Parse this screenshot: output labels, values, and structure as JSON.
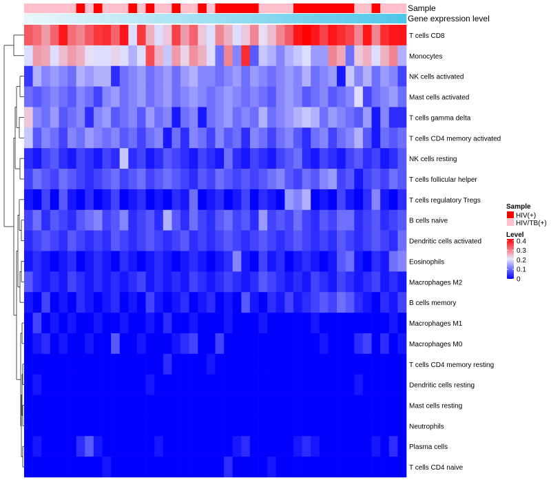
{
  "chart_data": {
    "type": "heatmap",
    "annotation_tracks": [
      {
        "name": "Sample"
      },
      {
        "name": "Gene expression level"
      }
    ],
    "rows": [
      "T cells CD8",
      "Monocytes",
      "NK cells activated",
      "Mast cells activated",
      "T cells gamma delta",
      "T cells CD4 memory activated",
      "NK cells resting",
      "T cells follicular helper",
      "T cells regulatory  Tregs",
      "B cells naive",
      "Dendritic cells activated",
      "Eosinophils",
      "Macrophages M2",
      "B cells memory",
      "Macrophages M1",
      "Macrophages M0",
      "T cells CD4 memory resting",
      "Dendritic cells resting",
      "Mast cells resting",
      "Neutrophils",
      "Plasma cells",
      "T cells CD4 naive"
    ],
    "sample_groups": [
      "HIV/TB(+)",
      "HIV/TB(+)",
      "HIV/TB(+)",
      "HIV/TB(+)",
      "HIV/TB(+)",
      "HIV/TB(+)",
      "HIV(+)",
      "HIV/TB(+)",
      "HIV(+)",
      "HIV/TB(+)",
      "HIV/TB(+)",
      "HIV/TB(+)",
      "HIV(+)",
      "HIV/TB(+)",
      "HIV(+)",
      "HIV/TB(+)",
      "HIV/TB(+)",
      "HIV(+)",
      "HIV/TB(+)",
      "HIV/TB(+)",
      "HIV(+)",
      "HIV/TB(+)",
      "HIV(+)",
      "HIV(+)",
      "HIV(+)",
      "HIV(+)",
      "HIV(+)",
      "HIV/TB(+)",
      "HIV/TB(+)",
      "HIV/TB(+)",
      "HIV/TB(+)",
      "HIV(+)",
      "HIV(+)",
      "HIV(+)",
      "HIV(+)",
      "HIV(+)",
      "HIV(+)",
      "HIV(+)",
      "HIV/TB(+)",
      "HIV/TB(+)",
      "HIV(+)",
      "HIV/TB(+)",
      "HIV/TB(+)",
      "HIV/TB(+)"
    ],
    "values": [
      [
        0.34,
        0.32,
        0.28,
        0.33,
        0.4,
        0.32,
        0.3,
        0.34,
        0.37,
        0.38,
        0.33,
        0.4,
        0.2,
        0.37,
        0.26,
        0.2,
        0.24,
        0.36,
        0.28,
        0.33,
        0.24,
        0.2,
        0.3,
        0.26,
        0.2,
        0.24,
        0.3,
        0.22,
        0.25,
        0.3,
        0.34,
        0.4,
        0.42,
        0.4,
        0.36,
        0.4,
        0.38,
        0.36,
        0.3,
        0.4,
        0.3,
        0.38,
        0.4,
        0.4
      ],
      [
        0.2,
        0.28,
        0.27,
        0.2,
        0.25,
        0.28,
        0.26,
        0.22,
        0.2,
        0.2,
        0.23,
        0.2,
        0.16,
        0.2,
        0.35,
        0.26,
        0.18,
        0.28,
        0.23,
        0.29,
        0.26,
        0.2,
        0.1,
        0.3,
        0.12,
        0.38,
        0.08,
        0.18,
        0.16,
        0.12,
        0.16,
        0.18,
        0.2,
        0.14,
        0.14,
        0.3,
        0.27,
        0.1,
        0.24,
        0.26,
        0.2,
        0.26,
        0.3,
        0.16
      ],
      [
        0.05,
        0.16,
        0.12,
        0.14,
        0.12,
        0.1,
        0.16,
        0.14,
        0.16,
        0.16,
        0.04,
        0.1,
        0.12,
        0.14,
        0.1,
        0.12,
        0.14,
        0.1,
        0.14,
        0.16,
        0.12,
        0.12,
        0.1,
        0.12,
        0.14,
        0.1,
        0.14,
        0.12,
        0.1,
        0.12,
        0.14,
        0.12,
        0.16,
        0.1,
        0.12,
        0.14,
        0.02,
        0.18,
        0.12,
        0.16,
        0.1,
        0.14,
        0.12,
        0.06
      ],
      [
        0.1,
        0.08,
        0.1,
        0.12,
        0.1,
        0.08,
        0.12,
        0.1,
        0.06,
        0.12,
        0.14,
        0.1,
        0.12,
        0.14,
        0.1,
        0.12,
        0.14,
        0.1,
        0.12,
        0.14,
        0.12,
        0.1,
        0.12,
        0.14,
        0.12,
        0.1,
        0.12,
        0.1,
        0.08,
        0.12,
        0.14,
        0.12,
        0.08,
        0.1,
        0.12,
        0.08,
        0.1,
        0.12,
        0.2,
        0.06,
        0.1,
        0.12,
        0.14,
        0.1
      ],
      [
        0.24,
        0.12,
        0.1,
        0.14,
        0.08,
        0.1,
        0.12,
        0.04,
        0.12,
        0.14,
        0.08,
        0.1,
        0.12,
        0.08,
        0.14,
        0.1,
        0.12,
        0.02,
        0.1,
        0.12,
        0.02,
        0.1,
        0.12,
        0.14,
        0.1,
        0.12,
        0.1,
        0.16,
        0.1,
        0.12,
        0.14,
        0.16,
        0.18,
        0.16,
        0.1,
        0.14,
        0.12,
        0.1,
        0.08,
        0.14,
        0.02,
        0.12,
        0.04,
        0.04
      ],
      [
        0.18,
        0.08,
        0.12,
        0.1,
        0.06,
        0.12,
        0.1,
        0.14,
        0.12,
        0.1,
        0.12,
        0.08,
        0.1,
        0.06,
        0.1,
        0.12,
        0.02,
        0.1,
        0.04,
        0.12,
        0.1,
        0.06,
        0.12,
        0.08,
        0.1,
        0.04,
        0.12,
        0.1,
        0.06,
        0.1,
        0.12,
        0.08,
        0.04,
        0.1,
        0.12,
        0.06,
        0.1,
        0.12,
        0.16,
        0.08,
        0.02,
        0.1,
        0.08,
        0.1
      ],
      [
        0.04,
        0.02,
        0.06,
        0.08,
        0.04,
        0.02,
        0.06,
        0.04,
        0.02,
        0.06,
        0.04,
        0.18,
        0.04,
        0.06,
        0.02,
        0.04,
        0.08,
        0.06,
        0.04,
        0.02,
        0.06,
        0.04,
        0.02,
        0.1,
        0.04,
        0.02,
        0.06,
        0.04,
        0.02,
        0.06,
        0.08,
        0.1,
        0.04,
        0.02,
        0.06,
        0.04,
        0.02,
        0.06,
        0.08,
        0.04,
        0.06,
        0.02,
        0.04,
        0.08
      ],
      [
        0.06,
        0.1,
        0.08,
        0.06,
        0.1,
        0.08,
        0.06,
        0.04,
        0.06,
        0.08,
        0.1,
        0.06,
        0.08,
        0.1,
        0.06,
        0.08,
        0.1,
        0.08,
        0.06,
        0.04,
        0.08,
        0.06,
        0.1,
        0.08,
        0.06,
        0.08,
        0.06,
        0.08,
        0.1,
        0.12,
        0.08,
        0.06,
        0.1,
        0.08,
        0.12,
        0.14,
        0.06,
        0.08,
        0.02,
        0.06,
        0.08,
        0.06,
        0.1,
        0.08
      ],
      [
        0.02,
        0.0,
        0.06,
        0.0,
        0.08,
        0.02,
        0.0,
        0.04,
        0.0,
        0.02,
        0.06,
        0.0,
        0.02,
        0.04,
        0.0,
        0.02,
        0.0,
        0.04,
        0.02,
        0.1,
        0.0,
        0.02,
        0.04,
        0.0,
        0.02,
        0.06,
        0.0,
        0.04,
        0.02,
        0.0,
        0.14,
        0.12,
        0.16,
        0.0,
        0.02,
        0.0,
        0.06,
        0.02,
        0.0,
        0.04,
        0.12,
        0.02,
        0.0,
        0.04
      ],
      [
        0.06,
        0.1,
        0.04,
        0.08,
        0.06,
        0.04,
        0.08,
        0.1,
        0.12,
        0.06,
        0.08,
        0.12,
        0.04,
        0.06,
        0.08,
        0.04,
        0.16,
        0.08,
        0.04,
        0.1,
        0.06,
        0.04,
        0.08,
        0.1,
        0.06,
        0.08,
        0.04,
        0.14,
        0.06,
        0.08,
        0.06,
        0.1,
        0.06,
        0.04,
        0.08,
        0.06,
        0.1,
        0.1,
        0.04,
        0.06,
        0.08,
        0.04,
        0.06,
        0.08
      ],
      [
        0.04,
        0.06,
        0.08,
        0.06,
        0.04,
        0.08,
        0.06,
        0.04,
        0.06,
        0.04,
        0.08,
        0.06,
        0.04,
        0.06,
        0.08,
        0.06,
        0.04,
        0.06,
        0.08,
        0.04,
        0.06,
        0.04,
        0.06,
        0.08,
        0.06,
        0.04,
        0.06,
        0.08,
        0.06,
        0.04,
        0.06,
        0.08,
        0.06,
        0.04,
        0.06,
        0.04,
        0.08,
        0.06,
        0.04,
        0.06,
        0.08,
        0.06,
        0.04,
        0.1
      ],
      [
        0.02,
        0.04,
        0.02,
        0.0,
        0.02,
        0.04,
        0.0,
        0.02,
        0.04,
        0.02,
        0.0,
        0.04,
        0.02,
        0.0,
        0.02,
        0.04,
        0.02,
        0.0,
        0.02,
        0.04,
        0.02,
        0.0,
        0.02,
        0.04,
        0.12,
        0.02,
        0.0,
        0.06,
        0.02,
        0.04,
        0.0,
        0.02,
        0.04,
        0.02,
        0.0,
        0.02,
        0.08,
        0.1,
        0.02,
        0.0,
        0.04,
        0.02,
        0.1,
        0.12
      ],
      [
        0.08,
        0.04,
        0.02,
        0.04,
        0.02,
        0.06,
        0.04,
        0.02,
        0.04,
        0.02,
        0.04,
        0.02,
        0.04,
        0.06,
        0.02,
        0.04,
        0.02,
        0.04,
        0.02,
        0.06,
        0.04,
        0.02,
        0.04,
        0.06,
        0.04,
        0.02,
        0.04,
        0.08,
        0.06,
        0.04,
        0.02,
        0.04,
        0.02,
        0.06,
        0.04,
        0.02,
        0.06,
        0.04,
        0.02,
        0.04,
        0.06,
        0.02,
        0.04,
        0.02
      ],
      [
        0.02,
        0.0,
        0.06,
        0.0,
        0.02,
        0.0,
        0.04,
        0.02,
        0.0,
        0.02,
        0.04,
        0.0,
        0.02,
        0.0,
        0.06,
        0.02,
        0.0,
        0.02,
        0.04,
        0.0,
        0.02,
        0.04,
        0.0,
        0.02,
        0.0,
        0.08,
        0.02,
        0.0,
        0.04,
        0.02,
        0.06,
        0.02,
        0.04,
        0.06,
        0.08,
        0.06,
        0.1,
        0.08,
        0.04,
        0.02,
        0.0,
        0.04,
        0.02,
        0.06
      ],
      [
        0.0,
        0.06,
        0.0,
        0.02,
        0.0,
        0.02,
        0.0,
        0.0,
        0.02,
        0.0,
        0.0,
        0.02,
        0.0,
        0.0,
        0.02,
        0.0,
        0.04,
        0.0,
        0.0,
        0.02,
        0.0,
        0.0,
        0.0,
        0.02,
        0.0,
        0.0,
        0.0,
        0.02,
        0.0,
        0.0,
        0.0,
        0.0,
        0.0,
        0.02,
        0.0,
        0.0,
        0.0,
        0.0,
        0.0,
        0.0,
        0.0,
        0.0,
        0.02,
        0.0
      ],
      [
        0.0,
        0.02,
        0.04,
        0.0,
        0.02,
        0.0,
        0.0,
        0.02,
        0.0,
        0.0,
        0.08,
        0.0,
        0.0,
        0.02,
        0.0,
        0.0,
        0.0,
        0.02,
        0.04,
        0.06,
        0.0,
        0.0,
        0.06,
        0.0,
        0.0,
        0.0,
        0.0,
        0.0,
        0.0,
        0.0,
        0.0,
        0.0,
        0.0,
        0.0,
        0.02,
        0.0,
        0.0,
        0.0,
        0.04,
        0.06,
        0.0,
        0.04,
        0.0,
        0.02
      ],
      [
        0.0,
        0.0,
        0.0,
        0.0,
        0.0,
        0.0,
        0.0,
        0.0,
        0.0,
        0.0,
        0.0,
        0.0,
        0.0,
        0.0,
        0.0,
        0.0,
        0.04,
        0.0,
        0.0,
        0.0,
        0.0,
        0.02,
        0.0,
        0.0,
        0.0,
        0.0,
        0.0,
        0.0,
        0.0,
        0.0,
        0.0,
        0.0,
        0.0,
        0.0,
        0.0,
        0.0,
        0.0,
        0.0,
        0.0,
        0.0,
        0.0,
        0.0,
        0.0,
        0.0
      ],
      [
        0.0,
        0.02,
        0.0,
        0.0,
        0.0,
        0.0,
        0.0,
        0.0,
        0.0,
        0.0,
        0.0,
        0.0,
        0.0,
        0.0,
        0.02,
        0.0,
        0.0,
        0.0,
        0.0,
        0.0,
        0.0,
        0.0,
        0.0,
        0.0,
        0.0,
        0.0,
        0.0,
        0.0,
        0.0,
        0.0,
        0.0,
        0.0,
        0.0,
        0.0,
        0.0,
        0.0,
        0.0,
        0.0,
        0.02,
        0.0,
        0.0,
        0.0,
        0.0,
        0.0
      ],
      [
        0.0,
        0.0,
        0.0,
        0.0,
        0.0,
        0.0,
        0.0,
        0.0,
        0.0,
        0.0,
        0.0,
        0.0,
        0.0,
        0.0,
        0.0,
        0.0,
        0.0,
        0.0,
        0.0,
        0.0,
        0.0,
        0.0,
        0.0,
        0.0,
        0.0,
        0.0,
        0.0,
        0.0,
        0.0,
        0.0,
        0.0,
        0.0,
        0.0,
        0.0,
        0.0,
        0.0,
        0.0,
        0.0,
        0.0,
        0.0,
        0.0,
        0.0,
        0.0,
        0.0
      ],
      [
        0.0,
        0.0,
        0.0,
        0.0,
        0.0,
        0.0,
        0.0,
        0.0,
        0.0,
        0.0,
        0.0,
        0.0,
        0.0,
        0.0,
        0.0,
        0.0,
        0.0,
        0.0,
        0.0,
        0.0,
        0.0,
        0.0,
        0.0,
        0.0,
        0.0,
        0.0,
        0.0,
        0.0,
        0.0,
        0.0,
        0.0,
        0.0,
        0.0,
        0.0,
        0.0,
        0.0,
        0.0,
        0.0,
        0.0,
        0.0,
        0.0,
        0.0,
        0.0,
        0.0
      ],
      [
        0.0,
        0.02,
        0.0,
        0.0,
        0.0,
        0.0,
        0.04,
        0.08,
        0.02,
        0.0,
        0.0,
        0.0,
        0.0,
        0.0,
        0.0,
        0.02,
        0.0,
        0.0,
        0.0,
        0.0,
        0.0,
        0.0,
        0.0,
        0.0,
        0.02,
        0.04,
        0.0,
        0.0,
        0.0,
        0.0,
        0.0,
        0.02,
        0.04,
        0.02,
        0.0,
        0.0,
        0.0,
        0.0,
        0.0,
        0.0,
        0.02,
        0.0,
        0.04,
        0.0
      ],
      [
        0.0,
        0.0,
        0.0,
        0.0,
        0.0,
        0.0,
        0.0,
        0.0,
        0.0,
        0.02,
        0.0,
        0.0,
        0.0,
        0.0,
        0.0,
        0.0,
        0.0,
        0.0,
        0.0,
        0.0,
        0.0,
        0.0,
        0.0,
        0.04,
        0.0,
        0.0,
        0.0,
        0.0,
        0.02,
        0.0,
        0.0,
        0.0,
        0.0,
        0.0,
        0.0,
        0.0,
        0.0,
        0.0,
        0.0,
        0.0,
        0.0,
        0.0,
        0.0,
        0.0
      ]
    ],
    "legend_sample": {
      "title": "Sample",
      "entries": [
        {
          "label": "HIV(+)",
          "color": "#ff0000"
        },
        {
          "label": "HIV/TB(+)",
          "color": "#ffc0cb"
        }
      ]
    },
    "legend_level": {
      "title": "Level",
      "ticks": [
        "0.4",
        "0.3",
        "0.2",
        "0.1",
        "0"
      ],
      "tick_values": [
        0.4,
        0.3,
        0.2,
        0.1,
        0.0
      ],
      "range": [
        0,
        0.42
      ]
    },
    "colors": {
      "low": "#0000ff",
      "mid": "#e8e8ff",
      "high": "#ff0000",
      "expr_start": "#e9f7fb",
      "expr_end": "#4fc6ea"
    }
  }
}
